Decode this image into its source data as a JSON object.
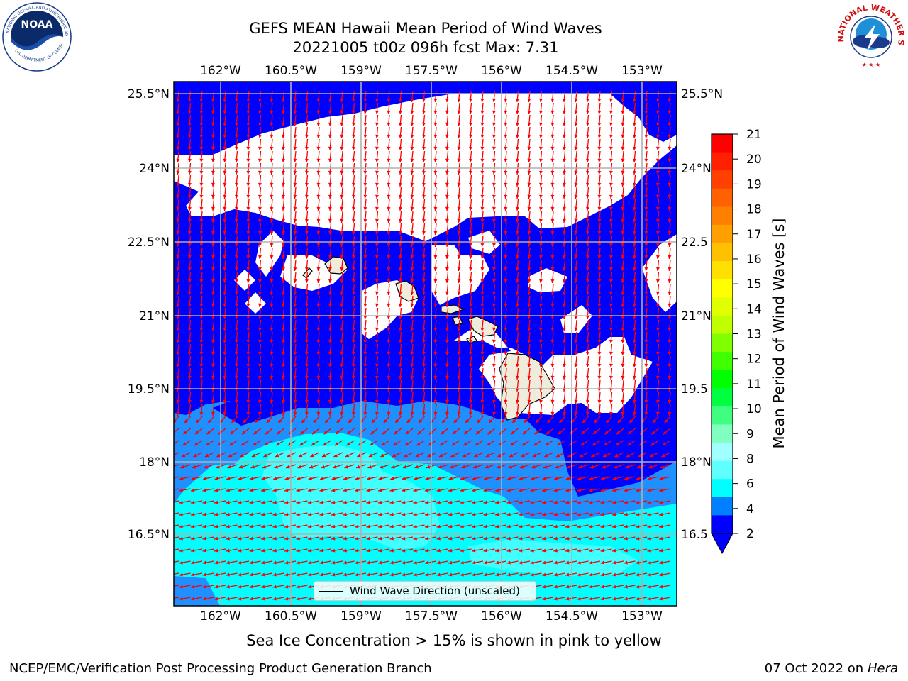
{
  "title": {
    "line1": "GEFS MEAN Hawaii Mean Period of Wind Waves",
    "line2": "20221005 t00z 096h fcst   Max: 7.31"
  },
  "logos": {
    "left": {
      "name": "NOAA",
      "ring_text": "NATIONAL OCEANIC AND ATMOSPHERIC ADMINISTRATION",
      "bottom_text": "U.S. DEPARTMENT OF COMMERCE"
    },
    "right": {
      "ring_text": "NATIONAL WEATHER SERVICE"
    }
  },
  "map": {
    "lon_ticks": [
      "162°W",
      "160.5°W",
      "159°W",
      "157.5°W",
      "156°W",
      "154.5°W",
      "153°W"
    ],
    "lat_ticks": [
      "25.5°N",
      "24°N",
      "22.5°N",
      "21°N",
      "19.5°N",
      "18°N",
      "16.5°N"
    ],
    "right_lat_ticks": [
      "25.5°N",
      "24°N",
      "22.5",
      "21°N",
      "19.5",
      "18°N",
      "16.5"
    ],
    "legend_label": "Wind Wave Direction (unscaled)",
    "colors": {
      "band_2_4": "#0000ff",
      "band_4_6": "#1e90ff",
      "band_6_7": "#00ffff",
      "band_7_8": "#40ffff",
      "arrows": "#ff0000",
      "land": "#f0ecdc",
      "grid": "#b0b0b0"
    }
  },
  "colorbar": {
    "label": "Mean Period of Wind Waves [s]",
    "ticks": [
      "21",
      "20",
      "19",
      "18",
      "17",
      "16",
      "15",
      "14",
      "13",
      "12",
      "11",
      "10",
      "9",
      "8",
      "6",
      "4",
      "2"
    ],
    "colors": [
      "#ff0000",
      "#ff2000",
      "#ff4000",
      "#ff6000",
      "#ff8000",
      "#ffa000",
      "#ffc000",
      "#ffe000",
      "#ffff00",
      "#e0ff00",
      "#c0ff00",
      "#80ff00",
      "#40ff00",
      "#00ff00",
      "#00ff40",
      "#40ff80",
      "#80ffc0",
      "#a0ffff",
      "#60ffff",
      "#00ffff",
      "#0080ff",
      "#0000ff"
    ]
  },
  "subtitle": "Sea Ice Concentration > 15% is shown in pink to yellow",
  "footer": {
    "left": "NCEP/EMC/Verification Post Processing Product Generation Branch",
    "right_date": "07 Oct 2022 on ",
    "right_host": "Hera"
  }
}
